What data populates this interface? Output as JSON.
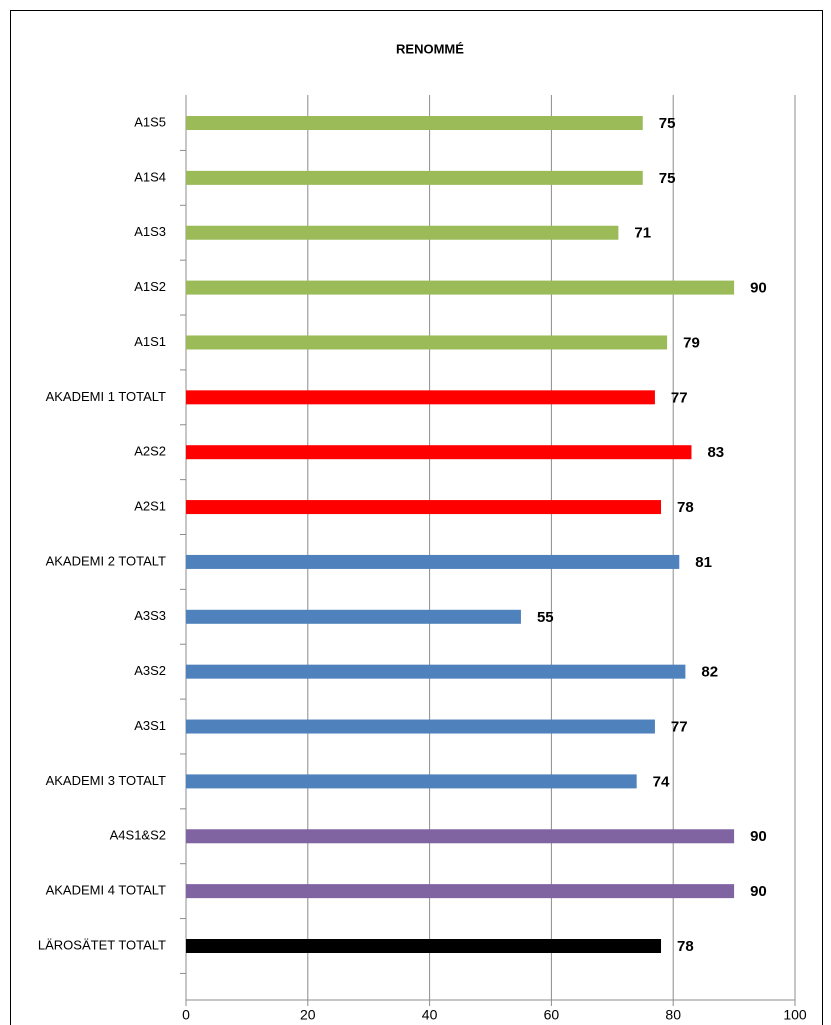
{
  "chart_data": {
    "type": "barh",
    "title": "RENOMMÉ",
    "categories": [
      "A1S5",
      "A1S4",
      "A1S3",
      "A1S2",
      "A1S1",
      "AKADEMI 1 TOTALT",
      "A2S2",
      "A2S1",
      "AKADEMI 2 TOTALT",
      "A3S3",
      "A3S2",
      "A3S1",
      "AKADEMI 3 TOTALT",
      "A4S1&S2",
      "AKADEMI 4 TOTALT",
      "LÄROSÄTET TOTALT"
    ],
    "values": [
      75,
      75,
      71,
      90,
      79,
      77,
      83,
      78,
      81,
      55,
      82,
      77,
      74,
      90,
      90,
      78
    ],
    "colors": [
      "#9bbb59",
      "#9bbb59",
      "#9bbb59",
      "#9bbb59",
      "#9bbb59",
      "#ff0000",
      "#ff0000",
      "#ff0000",
      "#4f81bd",
      "#4f81bd",
      "#4f81bd",
      "#4f81bd",
      "#4f81bd",
      "#8064a2",
      "#8064a2",
      "#000000"
    ],
    "xlim": [
      0,
      100
    ],
    "xticks": [
      0,
      20,
      40,
      60,
      80,
      100
    ],
    "grid": true
  }
}
